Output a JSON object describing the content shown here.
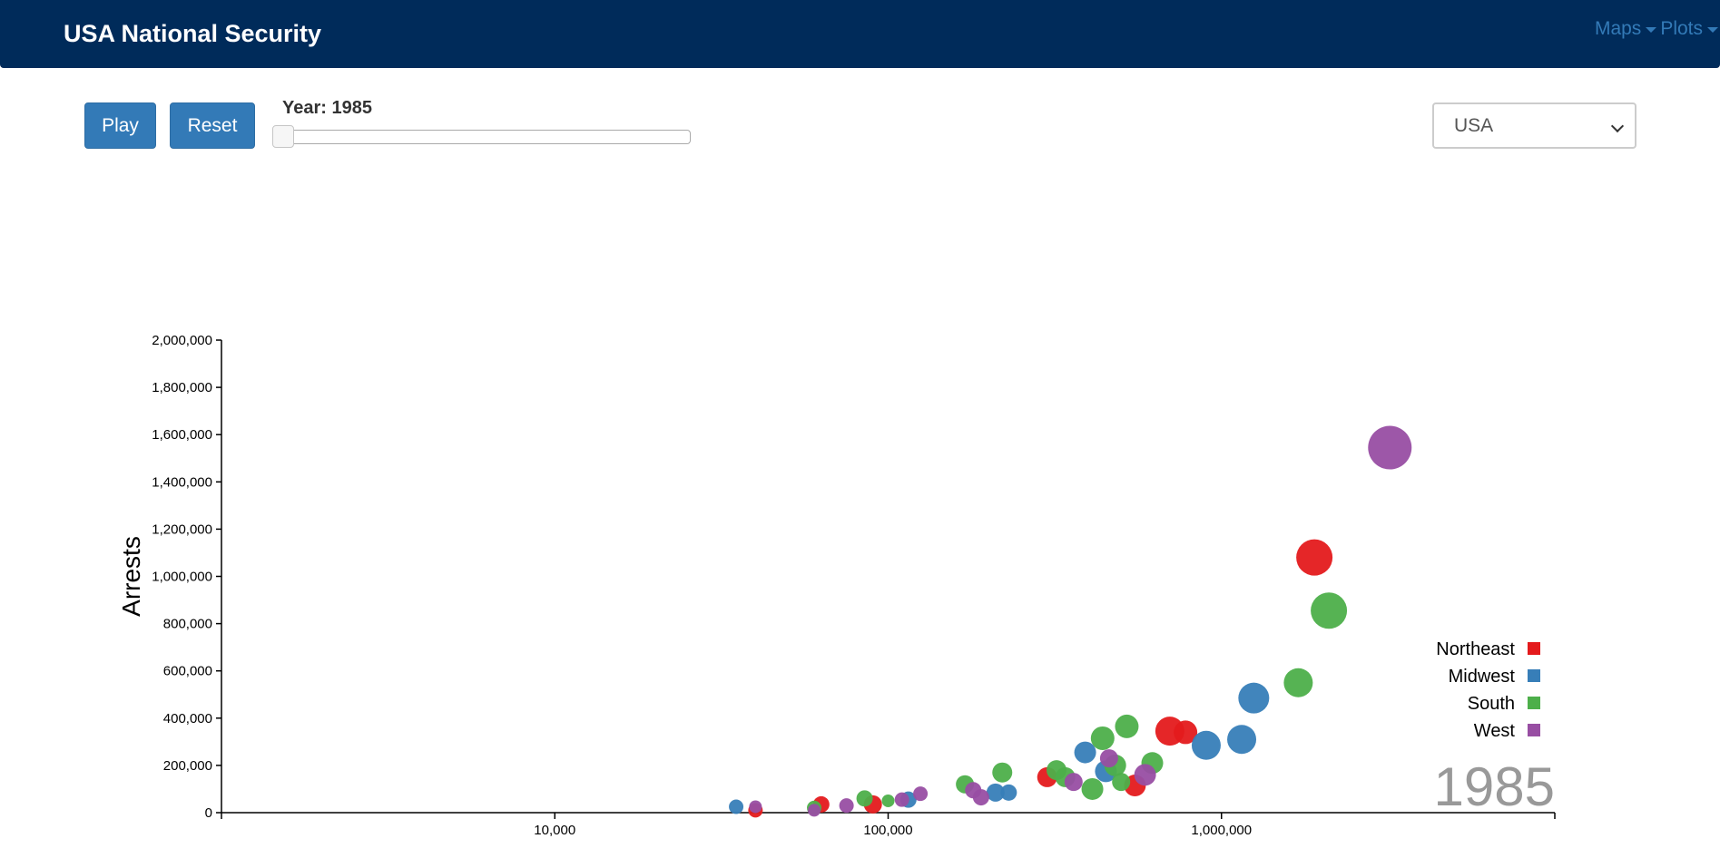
{
  "navbar": {
    "brand": "USA National Security",
    "menus": [
      {
        "label": "Maps"
      },
      {
        "label": "Plots"
      }
    ]
  },
  "controls": {
    "play_label": "Play",
    "reset_label": "Reset",
    "year_label": "Year: 1985",
    "slider_value": 1985,
    "selected_region": "USA"
  },
  "colors": {
    "navbar_bg": "#002b5a",
    "button_bg": "#337ab7",
    "Northeast": "#e41a1c",
    "Midwest": "#377eb8",
    "South": "#4daf4a",
    "West": "#984ea3"
  },
  "chart_data": {
    "type": "scatter",
    "ylabel": "Arrests",
    "year_watermark": "1985",
    "x_scale": "log",
    "xlim": [
      1000,
      10000000
    ],
    "ylim": [
      0,
      2000000
    ],
    "x_ticks": [
      {
        "value": 10000,
        "label": "10,000"
      },
      {
        "value": 100000,
        "label": "100,000"
      },
      {
        "value": 1000000,
        "label": "1,000,000"
      }
    ],
    "y_ticks": [
      {
        "value": 0,
        "label": "0"
      },
      {
        "value": 200000,
        "label": "200,000"
      },
      {
        "value": 400000,
        "label": "400,000"
      },
      {
        "value": 600000,
        "label": "600,000"
      },
      {
        "value": 800000,
        "label": "800,000"
      },
      {
        "value": 1000000,
        "label": "1,000,000"
      },
      {
        "value": 1200000,
        "label": "1,200,000"
      },
      {
        "value": 1400000,
        "label": "1,400,000"
      },
      {
        "value": 1600000,
        "label": "1,600,000"
      },
      {
        "value": 1800000,
        "label": "1,800,000"
      },
      {
        "value": 2000000,
        "label": "2,000,000"
      }
    ],
    "legend": [
      {
        "name": "Northeast",
        "color": "#e41a1c"
      },
      {
        "name": "Midwest",
        "color": "#377eb8"
      },
      {
        "name": "South",
        "color": "#4daf4a"
      },
      {
        "name": "West",
        "color": "#984ea3"
      }
    ],
    "legend_position": "bottom-right",
    "series": [
      {
        "name": "Northeast",
        "points": [
          {
            "x": 40000,
            "y": 10000,
            "r": 8
          },
          {
            "x": 63000,
            "y": 35000,
            "r": 9
          },
          {
            "x": 90000,
            "y": 35000,
            "r": 10
          },
          {
            "x": 300000,
            "y": 150000,
            "r": 11
          },
          {
            "x": 550000,
            "y": 115000,
            "r": 12
          },
          {
            "x": 700000,
            "y": 345000,
            "r": 16
          },
          {
            "x": 780000,
            "y": 340000,
            "r": 13
          },
          {
            "x": 1900000,
            "y": 1080000,
            "r": 20
          }
        ]
      },
      {
        "name": "Midwest",
        "points": [
          {
            "x": 35000,
            "y": 25000,
            "r": 8
          },
          {
            "x": 115000,
            "y": 55000,
            "r": 9
          },
          {
            "x": 210000,
            "y": 85000,
            "r": 10
          },
          {
            "x": 230000,
            "y": 85000,
            "r": 9
          },
          {
            "x": 390000,
            "y": 255000,
            "r": 12
          },
          {
            "x": 450000,
            "y": 175000,
            "r": 12
          },
          {
            "x": 900000,
            "y": 285000,
            "r": 16
          },
          {
            "x": 1150000,
            "y": 310000,
            "r": 16
          },
          {
            "x": 1250000,
            "y": 485000,
            "r": 17
          }
        ]
      },
      {
        "name": "South",
        "points": [
          {
            "x": 60000,
            "y": 20000,
            "r": 8
          },
          {
            "x": 85000,
            "y": 60000,
            "r": 9
          },
          {
            "x": 100000,
            "y": 50000,
            "r": 7
          },
          {
            "x": 170000,
            "y": 120000,
            "r": 10
          },
          {
            "x": 220000,
            "y": 170000,
            "r": 11
          },
          {
            "x": 320000,
            "y": 180000,
            "r": 11
          },
          {
            "x": 340000,
            "y": 150000,
            "r": 11
          },
          {
            "x": 410000,
            "y": 100000,
            "r": 12
          },
          {
            "x": 440000,
            "y": 315000,
            "r": 13
          },
          {
            "x": 480000,
            "y": 200000,
            "r": 12
          },
          {
            "x": 500000,
            "y": 130000,
            "r": 10
          },
          {
            "x": 520000,
            "y": 365000,
            "r": 13
          },
          {
            "x": 620000,
            "y": 210000,
            "r": 12
          },
          {
            "x": 1700000,
            "y": 550000,
            "r": 16
          },
          {
            "x": 2100000,
            "y": 855000,
            "r": 20
          }
        ]
      },
      {
        "name": "West",
        "points": [
          {
            "x": 40000,
            "y": 25000,
            "r": 7
          },
          {
            "x": 60000,
            "y": 10000,
            "r": 7
          },
          {
            "x": 75000,
            "y": 30000,
            "r": 8
          },
          {
            "x": 110000,
            "y": 55000,
            "r": 8
          },
          {
            "x": 125000,
            "y": 80000,
            "r": 8
          },
          {
            "x": 180000,
            "y": 95000,
            "r": 9
          },
          {
            "x": 190000,
            "y": 65000,
            "r": 9
          },
          {
            "x": 360000,
            "y": 130000,
            "r": 10
          },
          {
            "x": 460000,
            "y": 230000,
            "r": 10
          },
          {
            "x": 590000,
            "y": 160000,
            "r": 12
          },
          {
            "x": 3200000,
            "y": 1545000,
            "r": 24
          }
        ]
      }
    ]
  }
}
